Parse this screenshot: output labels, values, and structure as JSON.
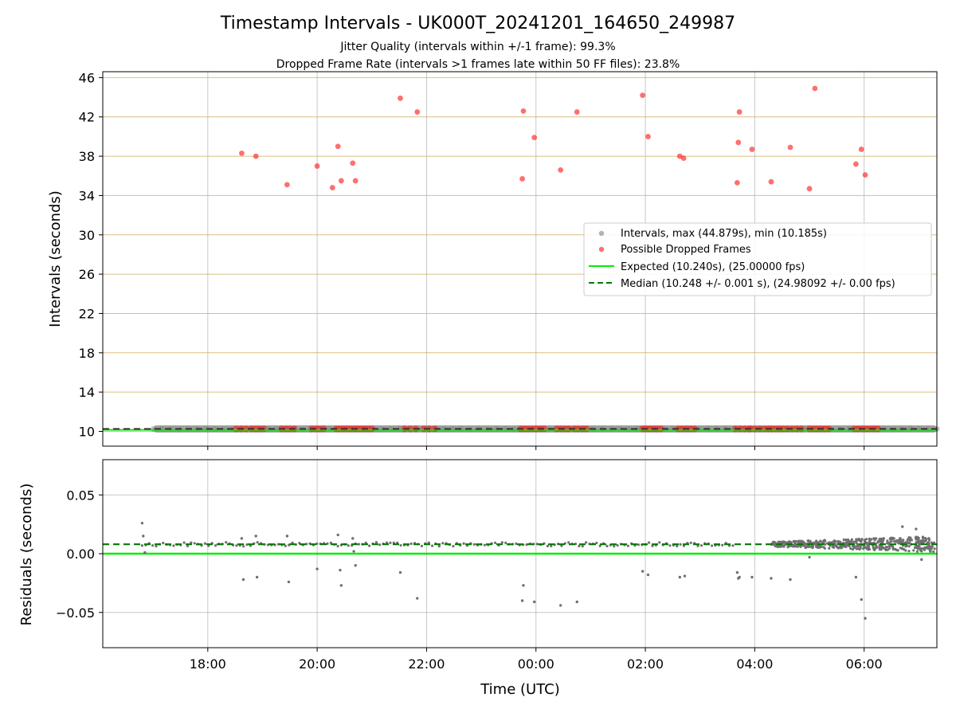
{
  "chart_data": [
    {
      "type": "scatter",
      "title": "Timestamp Intervals - UK000T_20241201_164650_249987",
      "subtitle_lines": [
        "Jitter Quality (intervals within +/-1 frame): 99.3%",
        "Dropped Frame Rate (intervals >1 frames late within 50 FF files): 23.8%"
      ],
      "ylabel": "Intervals (seconds)",
      "ylim": [
        8.5,
        46.6
      ],
      "yticks": [
        "10",
        "14",
        "18",
        "22",
        "26",
        "30",
        "34",
        "38",
        "42",
        "46"
      ],
      "ytick_values": [
        10,
        14,
        18,
        22,
        26,
        30,
        34,
        38,
        42,
        46
      ],
      "x_unit": "hours since 00:00 UTC (negative = previous day)",
      "xlim": [
        -7.92,
        7.33
      ],
      "xtick_values": [
        -6,
        -4,
        -2,
        0,
        2,
        4,
        6
      ],
      "grid": "x-gray, y-gold",
      "legend_position": "center-right",
      "legend": [
        {
          "label": "Intervals, max (44.879s), min (10.185s)",
          "kind": "marker",
          "color": "#a0a0a0"
        },
        {
          "label": "Possible Dropped Frames",
          "kind": "marker",
          "color": "#ff3333"
        },
        {
          "label": "Expected (10.240s), (25.00000 fps)",
          "kind": "line",
          "color": "#00ee00"
        },
        {
          "label": "Median (10.248 +/- 0.001 s), (24.98092 +/- 0.00 fps)",
          "kind": "dashed",
          "color": "#007700"
        }
      ],
      "series": [
        {
          "name": "Intervals, max (44.879s), min (10.185s)",
          "color": "#808080",
          "baseline_value": 10.248,
          "x_range": [
            -7.0,
            7.33
          ]
        },
        {
          "name": "Possible Dropped Frames",
          "color": "#ff3333",
          "x": [
            -5.38,
            -5.12,
            -4.55,
            -4.0,
            -3.62,
            -3.56,
            -3.72,
            -3.35,
            -3.3,
            -2.48,
            -2.17,
            -0.23,
            -0.25,
            -0.03,
            0.45,
            0.75,
            1.95,
            2.05,
            2.63,
            2.7,
            3.68,
            3.72,
            3.7,
            3.95,
            4.3,
            4.65,
            5.0,
            5.1,
            5.85,
            5.95,
            6.02
          ],
          "y": [
            38.3,
            38.0,
            35.1,
            37.0,
            39.0,
            35.5,
            34.8,
            37.3,
            35.5,
            43.9,
            42.5,
            42.6,
            35.7,
            39.9,
            36.6,
            42.5,
            44.2,
            40.0,
            38.0,
            37.8,
            35.3,
            42.5,
            39.4,
            38.7,
            35.4,
            38.9,
            34.7,
            44.9,
            37.2,
            38.7,
            36.1
          ],
          "baseline_value": 10.25,
          "baseline_clusters": [
            [
              -5.48,
              -5.3
            ],
            [
              -5.2,
              -4.98
            ],
            [
              -4.65,
              -4.42
            ],
            [
              -4.1,
              -3.88
            ],
            [
              -3.65,
              -3.0
            ],
            [
              -2.4,
              -2.2
            ],
            [
              -2.05,
              -1.85
            ],
            [
              -0.28,
              0.15
            ],
            [
              0.38,
              0.6
            ],
            [
              0.7,
              0.92
            ],
            [
              1.95,
              2.28
            ],
            [
              2.6,
              2.9
            ],
            [
              3.65,
              3.9
            ],
            [
              3.92,
              4.18
            ],
            [
              4.25,
              4.52
            ],
            [
              4.6,
              4.85
            ],
            [
              5.0,
              5.35
            ],
            [
              5.82,
              6.25
            ]
          ]
        },
        {
          "name": "Expected (10.240s), (25.00000 fps)",
          "color": "#00ee00",
          "value": 10.24
        },
        {
          "name": "Median (10.248 +/- 0.001 s), (24.98092 +/- 0.00 fps)",
          "color": "#007700",
          "value": 10.248
        }
      ]
    },
    {
      "type": "scatter",
      "ylabel": "Residuals (seconds)",
      "xlabel": "Time (UTC)",
      "ylim": [
        -0.08,
        0.08
      ],
      "yticks": [
        "−0.05",
        "0.00",
        "0.05"
      ],
      "ytick_values": [
        -0.05,
        0.0,
        0.05
      ],
      "xlim": [
        -7.92,
        7.33
      ],
      "xticks": [
        "18:00",
        "20:00",
        "22:00",
        "00:00",
        "02:00",
        "04:00",
        "06:00"
      ],
      "xtick_values": [
        -6,
        -4,
        -2,
        0,
        2,
        4,
        6
      ],
      "grid": "both-gray",
      "series": [
        {
          "name": "Residuals",
          "color": "#707070",
          "baseline_value": 0.008,
          "outliers_x": [
            -7.2,
            -7.18,
            -7.15,
            -5.38,
            -5.35,
            -5.12,
            -5.1,
            -4.55,
            -4.52,
            -4.0,
            -3.62,
            -3.56,
            -3.58,
            -3.35,
            -3.3,
            -3.33,
            -2.48,
            -2.17,
            -0.23,
            -0.25,
            -0.03,
            0.45,
            0.75,
            1.95,
            2.05,
            2.63,
            2.72,
            3.68,
            3.7,
            3.72,
            3.95,
            4.3,
            4.65,
            5.0,
            5.85,
            5.95,
            6.02,
            6.7,
            6.95,
            7.05
          ],
          "outliers_y": [
            0.026,
            0.015,
            0.001,
            0.013,
            -0.022,
            0.015,
            -0.02,
            0.015,
            -0.024,
            -0.013,
            0.016,
            -0.027,
            -0.014,
            0.013,
            -0.01,
            0.002,
            -0.016,
            -0.038,
            -0.027,
            -0.04,
            -0.041,
            -0.044,
            -0.041,
            -0.015,
            -0.018,
            -0.02,
            -0.019,
            -0.016,
            -0.021,
            -0.02,
            -0.02,
            -0.021,
            -0.022,
            -0.003,
            -0.02,
            -0.039,
            -0.055,
            0.023,
            0.021,
            -0.005
          ]
        },
        {
          "name": "Expected",
          "color": "#00ee00",
          "value": 0.0
        },
        {
          "name": "Median",
          "color": "#007700",
          "value": 0.008
        }
      ]
    }
  ]
}
